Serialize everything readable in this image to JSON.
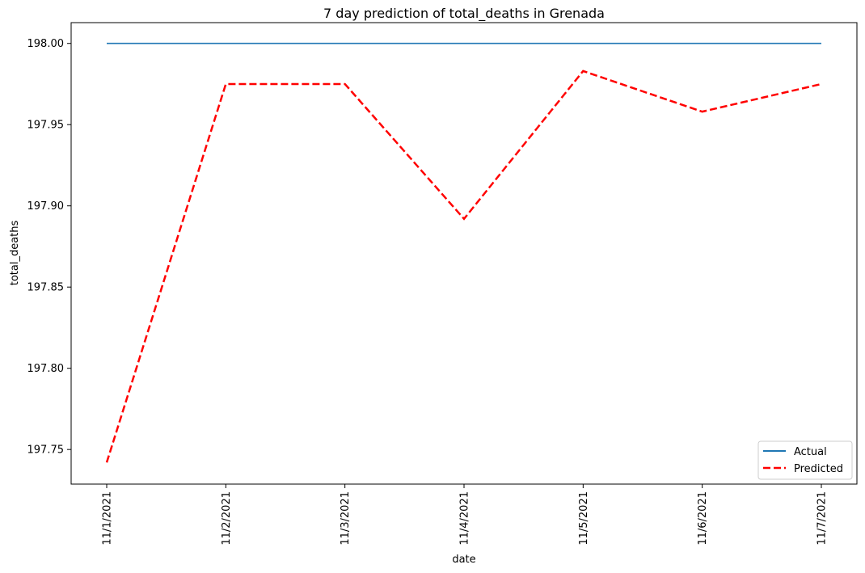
{
  "chart_data": {
    "type": "line",
    "title": "7 day prediction of total_deaths in Grenada",
    "xlabel": "date",
    "ylabel": "total_deaths",
    "categories": [
      "11/1/2021",
      "11/2/2021",
      "11/3/2021",
      "11/4/2021",
      "11/5/2021",
      "11/6/2021",
      "11/7/2021"
    ],
    "ylim": [
      197.7287,
      198.0128
    ],
    "yticks": [
      "197.75",
      "197.80",
      "197.85",
      "197.90",
      "197.95",
      "198.00"
    ],
    "grid": false,
    "legend_position": "lower-right",
    "series": [
      {
        "name": "Actual",
        "values": [
          198.0,
          198.0,
          198.0,
          198.0,
          198.0,
          198.0,
          198.0
        ],
        "color": "#1f77b4",
        "style": "solid"
      },
      {
        "name": "Predicted",
        "values": [
          197.742,
          197.975,
          197.975,
          197.892,
          197.983,
          197.958,
          197.975
        ],
        "color": "#ff0000",
        "style": "dashed"
      }
    ]
  }
}
